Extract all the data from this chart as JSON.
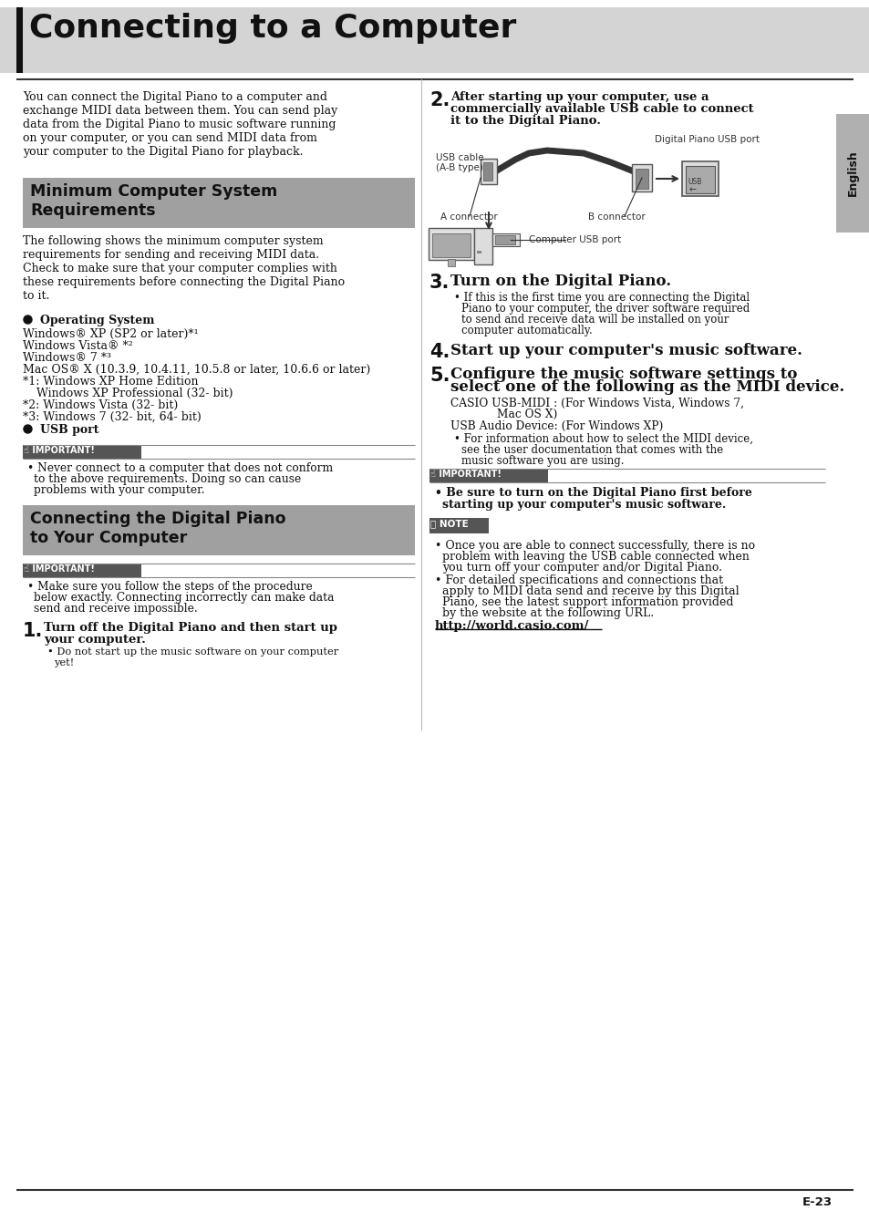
{
  "page_bg": "#ffffff",
  "header_bg": "#d4d4d4",
  "header_text": "Connecting to a Computer",
  "section_bg": "#a0a0a0",
  "important_bg": "#555555",
  "note_bg": "#555555",
  "sidebar_bg": "#b0b0b0",
  "sidebar_text": "English",
  "page_num": "E-23",
  "header_font_size": 26,
  "body_font_size": 9,
  "section_font_size": 13,
  "step_num_size": 16,
  "small_font_size": 8
}
